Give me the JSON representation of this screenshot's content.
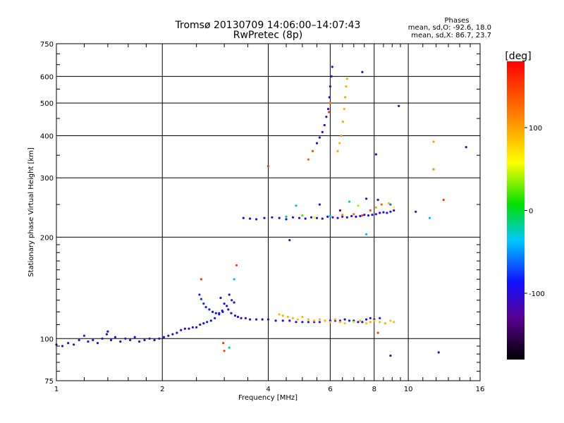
{
  "chart_data": {
    "type": "scatter",
    "title": "Tromsø 20130709 14:06:00–14:07:43",
    "subtitle": "RwPretec (8p)",
    "xlabel": "Frequency [MHz]",
    "ylabel": "Stationary phase Virtual Height [km]",
    "x_scale": "log",
    "y_scale": "log",
    "xlim": [
      1,
      16
    ],
    "ylim": [
      75,
      750
    ],
    "x_ticks": [
      1,
      2,
      4,
      6,
      8,
      10,
      16
    ],
    "x_tick_labels": [
      "1",
      "2",
      "4",
      "6",
      "8",
      "10",
      "16"
    ],
    "y_ticks": [
      75,
      100,
      200,
      300,
      400,
      500,
      600,
      750
    ],
    "y_tick_labels": [
      "75",
      "100",
      "200",
      "300",
      "400",
      "500",
      "600",
      "750"
    ],
    "x_minor_ticks": [
      1.2,
      1.4,
      1.6,
      1.8,
      2.5,
      3,
      3.5,
      4.5,
      5,
      5.5,
      6.5,
      7,
      7.5,
      8.5,
      9,
      9.5,
      11,
      12,
      13,
      14,
      15
    ],
    "y_minor_ticks": [
      80,
      85,
      90,
      95,
      110,
      120,
      130,
      140,
      150,
      160,
      170,
      180,
      190,
      250,
      350,
      450,
      550,
      650,
      700
    ],
    "grid": true,
    "phase_legend": {
      "heading": "Phases",
      "line1": "mean, sd,O:  -92.6,  18.0",
      "line2": "mean, sd,X:   86.7,  23.7"
    },
    "colorbar": {
      "label": "[deg]",
      "range": [
        -180,
        180
      ],
      "ticks": [
        100,
        0,
        -100
      ],
      "tick_labels": [
        "100",
        "0",
        "-100"
      ]
    },
    "series": [
      {
        "points": [
          [
            1.0,
            96,
            -95
          ],
          [
            1.04,
            95,
            -100
          ],
          [
            1.08,
            97,
            -92
          ],
          [
            1.12,
            96,
            -98
          ],
          [
            1.16,
            99,
            -90
          ],
          [
            1.2,
            102,
            -80
          ],
          [
            1.23,
            98,
            -95
          ],
          [
            1.27,
            99,
            -100
          ],
          [
            1.31,
            97,
            -95
          ],
          [
            1.35,
            100,
            -92
          ],
          [
            1.39,
            103,
            -100
          ],
          [
            1.43,
            99,
            -95
          ],
          [
            1.47,
            101,
            -90
          ],
          [
            1.52,
            98,
            -100
          ],
          [
            1.57,
            100,
            -95
          ],
          [
            1.62,
            99,
            -100
          ],
          [
            1.67,
            101,
            -88
          ],
          [
            1.72,
            98,
            -95
          ],
          [
            1.78,
            99,
            -100
          ],
          [
            1.84,
            100,
            -92
          ],
          [
            1.9,
            99,
            -95
          ],
          [
            1.96,
            100,
            -100
          ],
          [
            2.02,
            101,
            -95
          ],
          [
            2.08,
            102,
            -92
          ],
          [
            2.14,
            103,
            -100
          ],
          [
            2.2,
            104,
            -95
          ],
          [
            2.26,
            106,
            -92
          ],
          [
            2.32,
            107,
            -100
          ],
          [
            2.38,
            107,
            -95
          ],
          [
            2.44,
            108,
            -90
          ],
          [
            2.5,
            108,
            -95
          ],
          [
            2.56,
            110,
            -92
          ],
          [
            2.62,
            111,
            -85
          ],
          [
            2.68,
            112,
            -90
          ],
          [
            2.75,
            113,
            -88
          ],
          [
            2.82,
            115,
            -92
          ],
          [
            2.9,
            118,
            -95
          ],
          [
            2.97,
            120,
            -100
          ]
        ]
      },
      {
        "points": [
          [
            2.55,
            135,
            -80
          ],
          [
            2.58,
            131,
            -78
          ],
          [
            2.62,
            127,
            -80
          ],
          [
            2.66,
            124,
            -82
          ],
          [
            2.72,
            122,
            -85
          ],
          [
            2.78,
            120,
            -88
          ],
          [
            2.84,
            119,
            -90
          ],
          [
            2.9,
            119,
            -88
          ],
          [
            2.96,
            121,
            -92
          ],
          [
            2.93,
            132,
            -95
          ],
          [
            3.0,
            127,
            -100
          ],
          [
            3.05,
            125,
            -110
          ],
          [
            3.1,
            135,
            -115
          ],
          [
            3.15,
            130,
            -110
          ],
          [
            3.2,
            128,
            -105
          ],
          [
            3.08,
            122,
            -95
          ],
          [
            3.14,
            119,
            -100
          ],
          [
            3.22,
            117,
            -100
          ],
          [
            3.28,
            116,
            -98
          ],
          [
            3.35,
            115,
            -100
          ],
          [
            3.45,
            115,
            -95
          ],
          [
            3.55,
            114,
            -100
          ],
          [
            3.7,
            114,
            -98
          ],
          [
            3.85,
            114,
            -95
          ],
          [
            4.0,
            114,
            -100
          ],
          [
            4.2,
            113,
            -98
          ],
          [
            4.4,
            113,
            -95
          ],
          [
            4.6,
            113,
            -100
          ],
          [
            4.8,
            112,
            -95
          ],
          [
            5.0,
            112,
            -98
          ],
          [
            5.2,
            112,
            -100
          ],
          [
            5.4,
            112,
            -95
          ],
          [
            5.6,
            112,
            -98
          ],
          [
            5.8,
            113,
            -100
          ],
          [
            6.0,
            113,
            -95
          ],
          [
            6.2,
            113,
            -98
          ],
          [
            6.4,
            113,
            -100
          ],
          [
            6.6,
            114,
            -95
          ],
          [
            6.8,
            113,
            -98
          ],
          [
            7.0,
            113,
            -100
          ],
          [
            7.2,
            112,
            -100
          ],
          [
            7.4,
            112,
            -95
          ],
          [
            7.6,
            114,
            -90
          ],
          [
            7.8,
            115,
            -95
          ],
          [
            8.0,
            114,
            -100
          ],
          [
            8.3,
            115,
            -98
          ]
        ]
      },
      {
        "points": [
          [
            4.3,
            118,
            90
          ],
          [
            4.4,
            117,
            95
          ],
          [
            4.55,
            116,
            88
          ],
          [
            4.7,
            115,
            92
          ],
          [
            4.85,
            114,
            85
          ],
          [
            5.0,
            116,
            90
          ],
          [
            5.2,
            114,
            88
          ],
          [
            5.4,
            113,
            95
          ],
          [
            5.6,
            114,
            90
          ],
          [
            5.8,
            113,
            85
          ],
          [
            6.0,
            112,
            88
          ],
          [
            6.2,
            114,
            92
          ],
          [
            6.4,
            112,
            90
          ],
          [
            6.6,
            111,
            85
          ],
          [
            7.0,
            112,
            45
          ],
          [
            7.3,
            113,
            90
          ],
          [
            7.6,
            111,
            85
          ],
          [
            7.8,
            112,
            95
          ],
          [
            8.0,
            113,
            90
          ],
          [
            8.3,
            112,
            88
          ],
          [
            8.6,
            111,
            92
          ],
          [
            8.9,
            113,
            85
          ],
          [
            9.1,
            112,
            90
          ]
        ]
      },
      {
        "points": [
          [
            3.4,
            228,
            -95
          ],
          [
            3.55,
            227,
            -100
          ],
          [
            3.7,
            226,
            -95
          ],
          [
            3.9,
            228,
            -90
          ],
          [
            4.1,
            229,
            -100
          ],
          [
            4.3,
            228,
            -95
          ],
          [
            4.5,
            226,
            -90
          ],
          [
            4.7,
            229,
            -100
          ],
          [
            4.9,
            228,
            -95
          ],
          [
            5.1,
            227,
            -100
          ],
          [
            5.3,
            229,
            -95
          ],
          [
            5.5,
            228,
            -98
          ],
          [
            5.7,
            227,
            -100
          ],
          [
            5.9,
            230,
            -90
          ],
          [
            6.1,
            229,
            -95
          ],
          [
            6.3,
            228,
            -100
          ],
          [
            6.5,
            230,
            -95
          ],
          [
            6.7,
            229,
            -98
          ],
          [
            6.9,
            231,
            -100
          ],
          [
            7.1,
            230,
            -95
          ],
          [
            7.3,
            231,
            -90
          ],
          [
            7.5,
            233,
            -95
          ],
          [
            7.7,
            232,
            -100
          ],
          [
            7.9,
            233,
            -95
          ],
          [
            8.1,
            234,
            -98
          ],
          [
            8.3,
            236,
            -100
          ],
          [
            8.5,
            237,
            -95
          ],
          [
            8.7,
            236,
            -90
          ],
          [
            8.9,
            238,
            -95
          ],
          [
            9.1,
            240,
            -100
          ]
        ]
      },
      {
        "points": [
          [
            4.5,
            230,
            -10
          ],
          [
            5.0,
            232,
            20
          ],
          [
            5.4,
            229,
            60
          ],
          [
            6.0,
            231,
            -30
          ],
          [
            6.5,
            233,
            110
          ],
          [
            7.0,
            234,
            130
          ],
          [
            7.4,
            232,
            145
          ],
          [
            7.8,
            240,
            140
          ],
          [
            8.1,
            245,
            100
          ],
          [
            8.4,
            250,
            130
          ],
          [
            8.8,
            252,
            90
          ],
          [
            9.1,
            245,
            60
          ],
          [
            4.8,
            248,
            -40
          ],
          [
            5.6,
            250,
            -90
          ],
          [
            6.8,
            255,
            -20
          ],
          [
            7.6,
            260,
            -120
          ],
          [
            8.2,
            258,
            -100
          ],
          [
            8.9,
            250,
            -60
          ],
          [
            6.4,
            240,
            -130
          ],
          [
            7.2,
            248,
            40
          ]
        ]
      },
      {
        "points": [
          [
            5.2,
            340,
            130
          ],
          [
            5.35,
            360,
            140
          ],
          [
            5.5,
            380,
            -100
          ],
          [
            5.6,
            395,
            -110
          ],
          [
            5.7,
            410,
            -105
          ],
          [
            5.78,
            430,
            -115
          ],
          [
            5.85,
            455,
            -120
          ],
          [
            5.92,
            480,
            -110
          ],
          [
            5.97,
            520,
            -115
          ],
          [
            6.0,
            560,
            -120
          ],
          [
            6.05,
            600,
            -100
          ],
          [
            6.08,
            640,
            -120
          ],
          [
            5.95,
            470,
            150
          ],
          [
            6.0,
            500,
            130
          ]
        ]
      },
      {
        "points": [
          [
            6.3,
            360,
            95
          ],
          [
            6.38,
            380,
            90
          ],
          [
            6.45,
            400,
            100
          ],
          [
            6.52,
            440,
            95
          ],
          [
            6.58,
            480,
            90
          ],
          [
            6.62,
            520,
            100
          ],
          [
            6.66,
            560,
            92
          ],
          [
            6.7,
            590,
            95
          ]
        ]
      },
      {
        "points": [
          [
            4.0,
            325,
            150
          ],
          [
            7.4,
            618,
            -110
          ],
          [
            8.1,
            352,
            -110
          ],
          [
            9.4,
            490,
            -120
          ],
          [
            11.8,
            384,
            100
          ],
          [
            12.6,
            258,
            150
          ],
          [
            14.6,
            370,
            -110
          ],
          [
            11.5,
            228,
            -40
          ],
          [
            10.5,
            238,
            -110
          ],
          [
            4.6,
            196,
            -110
          ],
          [
            7.6,
            204,
            -40
          ],
          [
            8.2,
            104,
            150
          ],
          [
            8.9,
            89,
            -120
          ],
          [
            12.2,
            91,
            -120
          ],
          [
            2.98,
            97,
            150
          ],
          [
            3.0,
            92,
            140
          ],
          [
            3.1,
            94,
            -20
          ],
          [
            2.58,
            150,
            150
          ],
          [
            3.25,
            165,
            150
          ],
          [
            3.2,
            150,
            -40
          ],
          [
            11.8,
            318,
            110
          ],
          [
            1.4,
            105,
            -110
          ]
        ]
      }
    ]
  }
}
